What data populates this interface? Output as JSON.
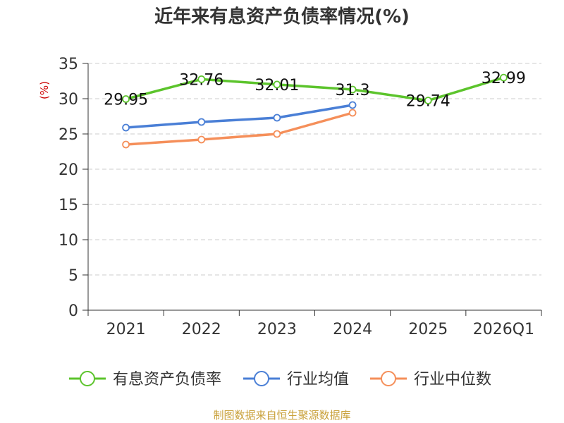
{
  "chart_data": {
    "type": "line",
    "title": "近年来有息资产负债率情况(%)",
    "ylabel": "(%)",
    "xlabel": "",
    "categories": [
      "2021",
      "2022",
      "2023",
      "2024",
      "2025",
      "2026Q1"
    ],
    "ylim": [
      0,
      35
    ],
    "yticks": [
      0,
      5,
      10,
      15,
      20,
      25,
      30,
      35
    ],
    "grid": true,
    "legend_position": "bottom",
    "series": [
      {
        "name": "有息资产负债率",
        "color": "#5cc42c",
        "values": [
          29.95,
          32.76,
          32.01,
          31.3,
          29.74,
          32.99
        ],
        "labels": [
          "29.95",
          "32.76",
          "32.01",
          "31.3",
          "29.74",
          "32.99"
        ]
      },
      {
        "name": "行业均值",
        "color": "#4a7fd6",
        "values": [
          25.9,
          26.7,
          27.3,
          29.1,
          null,
          null
        ]
      },
      {
        "name": "行业中位数",
        "color": "#f58f5a",
        "values": [
          23.5,
          24.2,
          25.0,
          28.0,
          null,
          null
        ]
      }
    ],
    "source": "制图数据来自恒生聚源数据库"
  }
}
